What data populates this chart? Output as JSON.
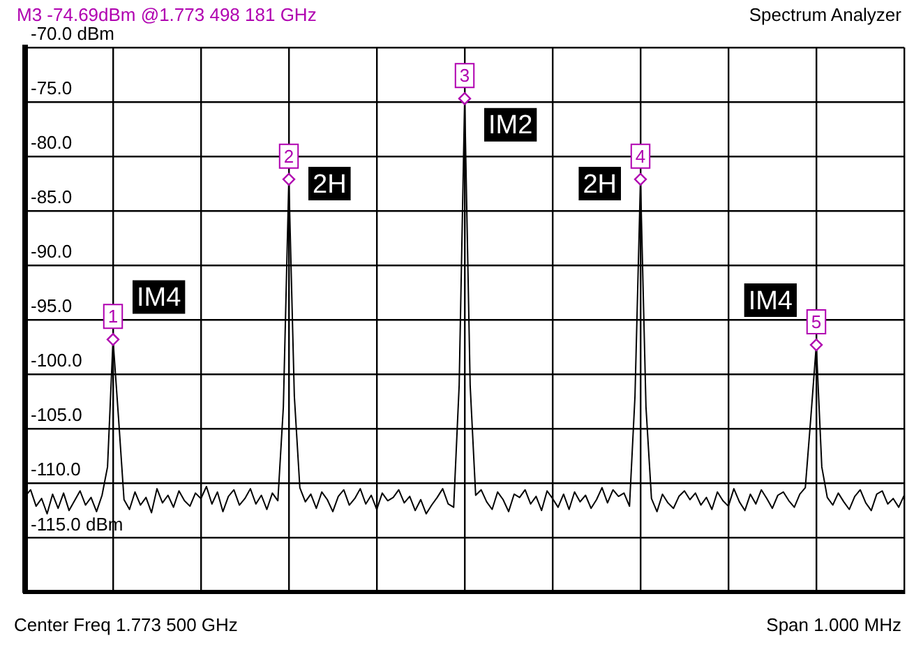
{
  "chart_data": {
    "type": "line",
    "title": "M3 -74.69dBm @1.773 498 181 GHz",
    "subtitle": "Spectrum Analyzer",
    "categories": [
      null,
      null,
      null,
      null,
      null,
      null,
      null,
      null,
      null,
      null,
      null,
      null,
      null,
      null,
      null,
      null,
      null,
      null,
      null,
      null,
      null,
      null,
      null,
      null,
      null,
      null,
      null,
      null,
      null,
      null,
      null,
      null,
      null,
      null,
      null,
      null,
      null,
      null,
      null,
      null,
      null,
      null,
      null,
      null,
      null,
      null,
      null,
      null,
      null,
      null,
      null,
      null,
      null,
      null,
      null,
      null,
      null,
      null,
      null,
      null,
      null,
      null,
      null,
      null,
      null,
      null,
      null,
      null,
      null,
      null,
      null,
      null,
      null,
      null,
      null,
      null,
      null,
      null,
      null,
      null,
      null,
      null,
      null,
      null,
      null,
      null,
      null,
      null,
      null,
      null,
      null,
      null,
      null,
      null,
      null,
      null,
      null,
      null,
      null,
      null,
      null,
      null,
      null,
      null,
      null,
      null,
      null,
      null,
      null,
      null,
      null,
      null,
      null,
      null,
      null,
      null,
      null,
      null,
      null,
      null,
      null,
      null,
      null,
      null,
      null,
      null,
      null,
      null,
      null,
      null,
      null,
      null,
      null,
      null,
      null,
      null,
      null,
      null,
      null,
      null,
      null,
      null,
      null,
      null,
      null,
      null,
      null,
      null,
      null,
      null,
      null,
      null,
      null,
      null,
      null,
      null,
      null,
      null,
      null,
      null,
      null
    ],
    "ylim": [
      -120,
      -70
    ],
    "yticks": [
      {
        "value": -120,
        "label": null
      },
      {
        "value": -115,
        "label": "-115.0 dBm"
      },
      {
        "value": -110,
        "label": "-110.0"
      },
      {
        "value": -105,
        "label": "-105.0"
      },
      {
        "value": -100,
        "label": "-100.0"
      },
      {
        "value": -95,
        "label": "-95.0"
      },
      {
        "value": -90,
        "label": "-90.0"
      },
      {
        "value": -85,
        "label": "-85.0"
      },
      {
        "value": -80,
        "label": "-80.0"
      },
      {
        "value": -75,
        "label": "-75.0"
      },
      {
        "value": -70,
        "label": "-70.0 dBm"
      }
    ],
    "tick_labels": "y",
    "grid": true,
    "legend": false,
    "series": [
      {
        "color": "#000000",
        "values": [
          -111.2,
          -110.6,
          -112.1,
          -111.4,
          -112.8,
          -111.0,
          -112.3,
          -110.9,
          -112.5,
          -111.6,
          -110.7,
          -112.0,
          -111.3,
          -112.6,
          -111.1,
          -108.5,
          -96.8,
          -104,
          -111.5,
          -112.4,
          -110.8,
          -112.0,
          -111.3,
          -112.7,
          -110.5,
          -111.8,
          -111.1,
          -112.2,
          -110.7,
          -111.6,
          -112.1,
          -110.9,
          -111.4,
          -110.3,
          -111.9,
          -110.8,
          -112.6,
          -111.2,
          -110.6,
          -112.0,
          -111.4,
          -110.5,
          -111.9,
          -111.1,
          -112.4,
          -110.9,
          -111.6,
          -103,
          -82.1,
          -102,
          -110.4,
          -111.7,
          -111.0,
          -112.3,
          -110.8,
          -111.5,
          -112.6,
          -111.2,
          -110.6,
          -112.0,
          -111.4,
          -110.5,
          -111.9,
          -111.1,
          -112.4,
          -110.9,
          -111.6,
          -111.3,
          -110.6,
          -111.8,
          -111.2,
          -112.5,
          -111.5,
          -112.8,
          -112.0,
          -111.3,
          -110.5,
          -111.9,
          -112.2,
          -101,
          -74.69,
          -101,
          -111.1,
          -110.6,
          -111.7,
          -112.4,
          -110.8,
          -111.5,
          -112.6,
          -111.0,
          -111.3,
          -110.6,
          -111.9,
          -111.2,
          -112.5,
          -110.7,
          -111.4,
          -112.2,
          -111.0,
          -112.4,
          -110.8,
          -111.7,
          -111.1,
          -112.3,
          -111.5,
          -110.4,
          -111.8,
          -110.6,
          -111.2,
          -110.9,
          -112.1,
          -102,
          -82.1,
          -103,
          -111.4,
          -112.6,
          -111.0,
          -111.8,
          -112.3,
          -111.2,
          -110.7,
          -111.5,
          -110.9,
          -112.0,
          -111.3,
          -112.4,
          -110.8,
          -111.6,
          -112.1,
          -110.5,
          -111.7,
          -112.5,
          -111.0,
          -111.9,
          -110.6,
          -111.4,
          -112.3,
          -111.1,
          -110.8,
          -111.6,
          -112.2,
          -111.0,
          -110.4,
          -104,
          -97.3,
          -108.5,
          -111.3,
          -112.0,
          -110.9,
          -111.7,
          -112.4,
          -111.2,
          -110.6,
          -111.8,
          -112.5,
          -111.0,
          -110.7,
          -111.9,
          -111.4,
          -112.2,
          -111.1
        ]
      }
    ],
    "annotations": [
      {
        "text": "1",
        "y": -96.8
      },
      {
        "text": "2",
        "y": -82.1
      },
      {
        "text": "3",
        "y": -74.69
      },
      {
        "text": "4",
        "y": -82.1
      },
      {
        "text": "5",
        "y": -97.3
      },
      {
        "text": "IM4",
        "y": -92.9
      },
      {
        "text": "2H",
        "y": -82.5
      },
      {
        "text": "IM2",
        "y": -77.1
      },
      {
        "text": "2H",
        "y": -82.5
      },
      {
        "text": "IM4",
        "y": -93.2
      },
      "Center Freq 1.773 500 GHz",
      "Span 1.000 MHz"
    ]
  }
}
